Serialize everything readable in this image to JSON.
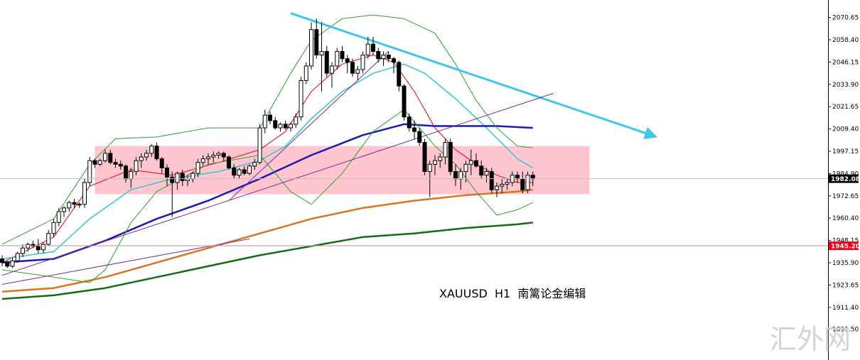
{
  "chart_data": {
    "type": "candlestick",
    "symbol": "XAUUSD",
    "timeframe": "H1",
    "caption": "XAUUSD  H1  南篱论金编辑",
    "watermark": "汇外网",
    "ylim": [
      1893.0,
      2074.0
    ],
    "y_ticks": [
      "2070.65",
      "2058.40",
      "2046.15",
      "2033.90",
      "2021.65",
      "2009.40",
      "1997.15",
      "1984.90",
      "1972.65",
      "1960.40",
      "1948.15",
      "1935.90",
      "1923.65",
      "1911.40",
      "1899.50"
    ],
    "price_tags": [
      {
        "label": "1982.08",
        "value": 1982.08,
        "bg": "#000000",
        "fg": "#ffffff"
      },
      {
        "label": "1945.20",
        "value": 1945.2,
        "bg": "#e8001a",
        "fg": "#ffffff"
      }
    ],
    "candles": [
      [
        1938,
        1940,
        1934,
        1936
      ],
      [
        1936,
        1937,
        1933,
        1934
      ],
      [
        1934,
        1939,
        1933,
        1937
      ],
      [
        1937,
        1942,
        1936,
        1941
      ],
      [
        1941,
        1946,
        1939,
        1944
      ],
      [
        1944,
        1947,
        1942,
        1946
      ],
      [
        1946,
        1948,
        1944,
        1945
      ],
      [
        1945,
        1949,
        1941,
        1943
      ],
      [
        1943,
        1947,
        1941,
        1946
      ],
      [
        1946,
        1954,
        1945,
        1952
      ],
      [
        1952,
        1960,
        1950,
        1958
      ],
      [
        1958,
        1966,
        1956,
        1964
      ],
      [
        1964,
        1967,
        1961,
        1966
      ],
      [
        1966,
        1970,
        1964,
        1969
      ],
      [
        1969,
        1971,
        1966,
        1968
      ],
      [
        1968,
        1969,
        1966,
        1968
      ],
      [
        1968,
        1982,
        1966,
        1980
      ],
      [
        1980,
        1994,
        1978,
        1992
      ],
      [
        1992,
        1993,
        1988,
        1990
      ],
      [
        1990,
        1993,
        1989,
        1992
      ],
      [
        1992,
        1998,
        1991,
        1996
      ],
      [
        1996,
        1998,
        1990,
        1991
      ],
      [
        1991,
        1993,
        1988,
        1990
      ],
      [
        1990,
        1992,
        1987,
        1989
      ],
      [
        1989,
        1990,
        1980,
        1982
      ],
      [
        1982,
        1988,
        1977,
        1986
      ],
      [
        1986,
        1994,
        1984,
        1992
      ],
      [
        1992,
        1996,
        1988,
        1994
      ],
      [
        1994,
        1998,
        1992,
        1996
      ],
      [
        1996,
        2001,
        1994,
        2000
      ],
      [
        2000,
        2002,
        1992,
        1993
      ],
      [
        1993,
        1994,
        1985,
        1988
      ],
      [
        1988,
        1990,
        1978,
        1983
      ],
      [
        1983,
        1986,
        1961,
        1980
      ],
      [
        1980,
        1986,
        1976,
        1985
      ],
      [
        1985,
        1987,
        1978,
        1981
      ],
      [
        1981,
        1984,
        1978,
        1982
      ],
      [
        1982,
        1986,
        1980,
        1985
      ],
      [
        1985,
        1993,
        1983,
        1991
      ],
      [
        1991,
        1995,
        1989,
        1993
      ],
      [
        1993,
        1996,
        1990,
        1994
      ],
      [
        1994,
        1997,
        1991,
        1995
      ],
      [
        1995,
        1997,
        1993,
        1996
      ],
      [
        1996,
        1997,
        1992,
        1994
      ],
      [
        1994,
        1995,
        1987,
        1988
      ],
      [
        1988,
        1990,
        1982,
        1984
      ],
      [
        1984,
        1988,
        1982,
        1987
      ],
      [
        1987,
        1989,
        1984,
        1985
      ],
      [
        1985,
        1990,
        1984,
        1989
      ],
      [
        1989,
        1993,
        1987,
        1991
      ],
      [
        1991,
        2012,
        1990,
        2010
      ],
      [
        2010,
        2020,
        2007,
        2017
      ],
      [
        2017,
        2019,
        2012,
        2014
      ],
      [
        2014,
        2016,
        2009,
        2010
      ],
      [
        2010,
        2013,
        2008,
        2012
      ],
      [
        2012,
        2014,
        2009,
        2010
      ],
      [
        2010,
        2013,
        2008,
        2012
      ],
      [
        2012,
        2018,
        2010,
        2016
      ],
      [
        2016,
        2038,
        2014,
        2036
      ],
      [
        2036,
        2046,
        2034,
        2044
      ],
      [
        2044,
        2068,
        2042,
        2064
      ],
      [
        2064,
        2070,
        2048,
        2050
      ],
      [
        2050,
        2068,
        2030,
        2052
      ],
      [
        2052,
        2055,
        2038,
        2040
      ],
      [
        2040,
        2046,
        2032,
        2044
      ],
      [
        2044,
        2054,
        2042,
        2052
      ],
      [
        2052,
        2055,
        2046,
        2048
      ],
      [
        2048,
        2050,
        2040,
        2046
      ],
      [
        2046,
        2048,
        2038,
        2040
      ],
      [
        2040,
        2044,
        2036,
        2042
      ],
      [
        2042,
        2052,
        2040,
        2050
      ],
      [
        2050,
        2060,
        2048,
        2056
      ],
      [
        2056,
        2060,
        2050,
        2052
      ],
      [
        2052,
        2054,
        2046,
        2048
      ],
      [
        2048,
        2052,
        2044,
        2050
      ],
      [
        2050,
        2052,
        2046,
        2048
      ],
      [
        2048,
        2049,
        2040,
        2046
      ],
      [
        2046,
        2047,
        2030,
        2033
      ],
      [
        2033,
        2034,
        2014,
        2016
      ],
      [
        2016,
        2018,
        2008,
        2010
      ],
      [
        2010,
        2014,
        2004,
        2008
      ],
      [
        2008,
        2010,
        2000,
        2002
      ],
      [
        2002,
        2004,
        1984,
        1986
      ],
      [
        1986,
        1992,
        1972,
        1990
      ],
      [
        1990,
        1995,
        1984,
        1992
      ],
      [
        1992,
        1996,
        1988,
        1994
      ],
      [
        1994,
        2004,
        1990,
        2002
      ],
      [
        2002,
        2004,
        1984,
        1986
      ],
      [
        1986,
        1990,
        1978,
        1982
      ],
      [
        1982,
        1988,
        1976,
        1986
      ],
      [
        1986,
        1992,
        1980,
        1990
      ],
      [
        1990,
        1998,
        1984,
        1992
      ],
      [
        1992,
        1996,
        1988,
        1989
      ],
      [
        1989,
        1992,
        1982,
        1984
      ],
      [
        1984,
        1988,
        1980,
        1986
      ],
      [
        1986,
        1988,
        1974,
        1976
      ],
      [
        1976,
        1980,
        1972,
        1978
      ],
      [
        1978,
        1982,
        1974,
        1979
      ],
      [
        1979,
        1982,
        1976,
        1980
      ],
      [
        1980,
        1986,
        1978,
        1984
      ],
      [
        1984,
        1986,
        1980,
        1982
      ],
      [
        1982,
        1986,
        1974,
        1976
      ],
      [
        1976,
        1986,
        1974,
        1984
      ],
      [
        1984,
        1986,
        1978,
        1982
      ]
    ],
    "series": [
      {
        "name": "",
        "color": "#e8001a",
        "width": 1,
        "points": [
          [
            0,
            1936
          ],
          [
            10,
            1950
          ],
          [
            17,
            1978
          ],
          [
            25,
            1987
          ],
          [
            33,
            1984
          ],
          [
            42,
            1991
          ],
          [
            50,
            1998
          ],
          [
            55,
            2008
          ],
          [
            60,
            2030
          ],
          [
            66,
            2045
          ],
          [
            72,
            2050
          ],
          [
            76,
            2046
          ],
          [
            80,
            2030
          ],
          [
            84,
            2010
          ],
          [
            88,
            1998
          ],
          [
            92,
            1990
          ],
          [
            96,
            1984
          ],
          [
            100,
            1980
          ],
          [
            103,
            1980
          ]
        ]
      },
      {
        "name": "",
        "color": "#32c8c8",
        "width": 1.5,
        "points": [
          [
            0,
            1938
          ],
          [
            10,
            1942
          ],
          [
            17,
            1960
          ],
          [
            25,
            1976
          ],
          [
            33,
            1982
          ],
          [
            42,
            1986
          ],
          [
            50,
            1992
          ],
          [
            55,
            2000
          ],
          [
            60,
            2015
          ],
          [
            66,
            2030
          ],
          [
            72,
            2040
          ],
          [
            78,
            2045
          ],
          [
            82,
            2040
          ],
          [
            88,
            2026
          ],
          [
            94,
            2010
          ],
          [
            100,
            1993
          ],
          [
            103,
            1988
          ]
        ]
      },
      {
        "name": "",
        "color": "#1a1ab4",
        "width": 2.5,
        "points": [
          [
            0,
            1936
          ],
          [
            10,
            1938
          ],
          [
            20,
            1948
          ],
          [
            30,
            1960
          ],
          [
            40,
            1970
          ],
          [
            50,
            1982
          ],
          [
            60,
            1995
          ],
          [
            70,
            2006
          ],
          [
            78,
            2012
          ],
          [
            84,
            2011
          ],
          [
            90,
            2011
          ],
          [
            96,
            2011
          ],
          [
            103,
            2010
          ]
        ]
      },
      {
        "name": "",
        "color": "#d8751f",
        "width": 2.5,
        "points": [
          [
            0,
            1920
          ],
          [
            10,
            1922
          ],
          [
            20,
            1928
          ],
          [
            30,
            1936
          ],
          [
            40,
            1944
          ],
          [
            50,
            1952
          ],
          [
            60,
            1960
          ],
          [
            70,
            1966
          ],
          [
            80,
            1970
          ],
          [
            90,
            1973
          ],
          [
            100,
            1975
          ],
          [
            103,
            1976
          ]
        ]
      },
      {
        "name": "",
        "color": "#0f6e0f",
        "width": 2.5,
        "points": [
          [
            0,
            1916
          ],
          [
            10,
            1918
          ],
          [
            20,
            1922
          ],
          [
            30,
            1928
          ],
          [
            40,
            1934
          ],
          [
            50,
            1940
          ],
          [
            60,
            1945
          ],
          [
            70,
            1950
          ],
          [
            80,
            1952
          ],
          [
            90,
            1955
          ],
          [
            100,
            1957
          ],
          [
            103,
            1958
          ]
        ]
      },
      {
        "name": "",
        "color": "#2ca02c",
        "width": 1,
        "points": [
          [
            0,
            1932
          ],
          [
            10,
            1928
          ],
          [
            17,
            1925
          ],
          [
            20,
            1932
          ],
          [
            25,
            1958
          ],
          [
            30,
            1975
          ],
          [
            40,
            1990
          ],
          [
            50,
            1995
          ],
          [
            56,
            1975
          ],
          [
            60,
            1968
          ],
          [
            66,
            1985
          ],
          [
            72,
            2008
          ],
          [
            78,
            2020
          ],
          [
            84,
            2000
          ],
          [
            88,
            1990
          ],
          [
            92,
            1975
          ],
          [
            96,
            1962
          ],
          [
            100,
            1965
          ],
          [
            103,
            1969
          ]
        ]
      },
      {
        "name": "",
        "color": "#2ca02c",
        "width": 1,
        "points": [
          [
            0,
            1946
          ],
          [
            10,
            1960
          ],
          [
            17,
            1990
          ],
          [
            22,
            2004
          ],
          [
            30,
            2005
          ],
          [
            40,
            2010
          ],
          [
            50,
            2010
          ],
          [
            56,
            2040
          ],
          [
            60,
            2058
          ],
          [
            66,
            2070
          ],
          [
            72,
            2072
          ],
          [
            78,
            2070
          ],
          [
            84,
            2062
          ],
          [
            88,
            2045
          ],
          [
            92,
            2025
          ],
          [
            96,
            2010
          ],
          [
            100,
            2000
          ],
          [
            103,
            1999
          ]
        ]
      }
    ],
    "drawings": [
      {
        "kind": "rect",
        "x0": 18,
        "x1": 114,
        "y0": 1973.5,
        "y1": 2000,
        "color": "#ffc0cb"
      },
      {
        "kind": "hline",
        "y": 1945.2,
        "color": "#e8001a"
      },
      {
        "kind": "trend",
        "x0": 56,
        "y0": 2073,
        "x1": 126,
        "y1": 2006,
        "color": "#3cc8e6",
        "width": 3,
        "arrow": true
      },
      {
        "kind": "trend",
        "x0": 0,
        "y0": 1929,
        "x1": 107,
        "y1": 2029,
        "color": "#7a2a9a",
        "width": 1
      },
      {
        "kind": "trend",
        "x0": 0,
        "y0": 1924,
        "x1": 48,
        "y1": 1949,
        "color": "#7a2a9a",
        "width": 1
      },
      {
        "kind": "trend",
        "x0": 44,
        "y0": 1970,
        "x1": 75,
        "y1": 2052,
        "color": "#7a2a9a",
        "width": 1
      }
    ]
  }
}
